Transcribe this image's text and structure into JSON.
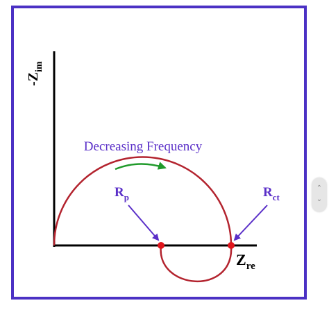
{
  "diagram": {
    "y_axis_label_main": "-Z",
    "y_axis_label_sub": "im",
    "x_axis_label_main": "Z",
    "x_axis_label_sub": "re",
    "title": "Decreasing Frequency",
    "rp_label_main": "R",
    "rp_label_sub": "p",
    "rct_label_main": "R",
    "rct_label_sub": "ct"
  },
  "colors": {
    "frame": "#4b31c4",
    "curve": "#b3232e",
    "arrow_green": "#1f9a2a",
    "label_purple": "#5a2fc8",
    "axis": "#000000",
    "point": "#e0161d"
  },
  "scrollbar": {
    "up_icon": "chevron-up-icon",
    "down_icon": "chevron-down-icon",
    "up_glyph": "⌃",
    "down_glyph": "⌄"
  }
}
